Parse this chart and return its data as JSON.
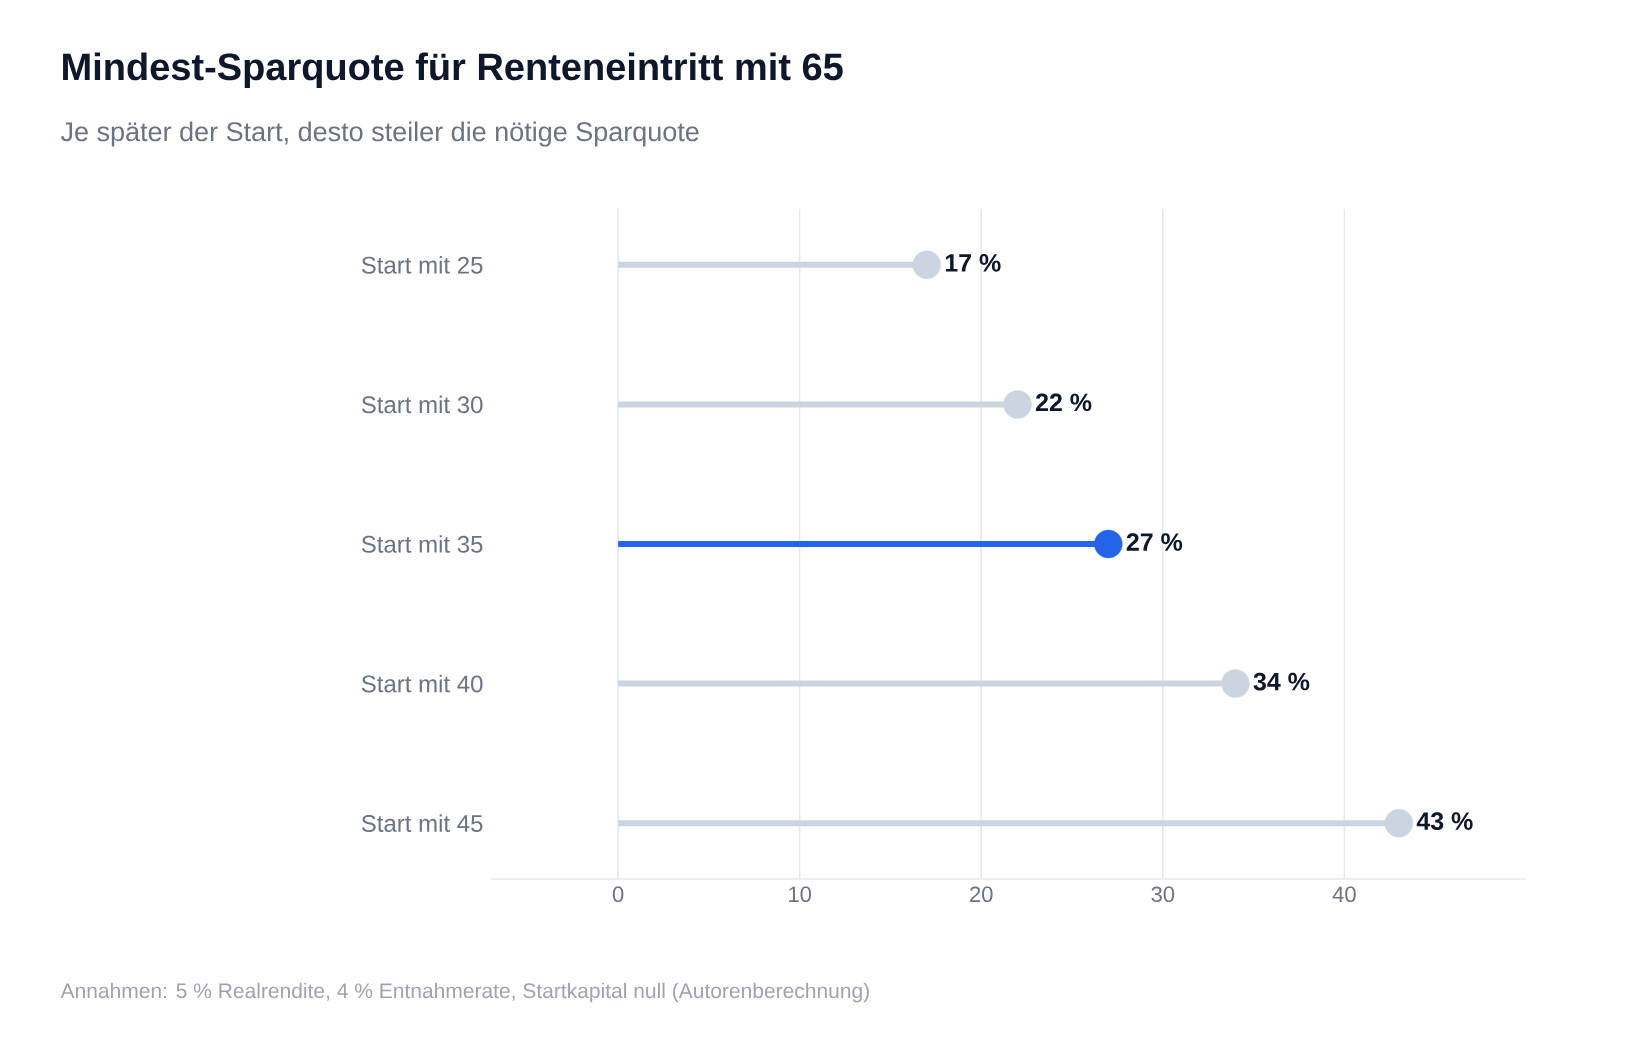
{
  "chart_data": {
    "type": "lollipop",
    "orientation": "horizontal",
    "title": "Mindest-Sparquote für Renteneintritt mit 65",
    "subtitle": "Je später der Start, desto steiler die nötige Sparquote",
    "categories": [
      "Start mit 25",
      "Start mit 30",
      "Start mit 35",
      "Start mit 40",
      "Start mit 45"
    ],
    "values": [
      17,
      22,
      27,
      34,
      43
    ],
    "colors": [
      "#cbd5e1",
      "#cbd5e1",
      "#2563eb",
      "#cbd5e1",
      "#cbd5e1"
    ],
    "value_labels": [
      "17 %",
      "22 %",
      "27 %",
      "34 %",
      "43 %"
    ],
    "xlim": [
      -7,
      50
    ],
    "xticks": [
      0,
      10,
      20,
      30,
      40
    ],
    "grid": "x",
    "marker": "circle",
    "annotations": [
      "Annahmen: 5 % Realrendite, 4 % Entnahmerate, Startkapital null (Autorenberechnung)"
    ]
  }
}
